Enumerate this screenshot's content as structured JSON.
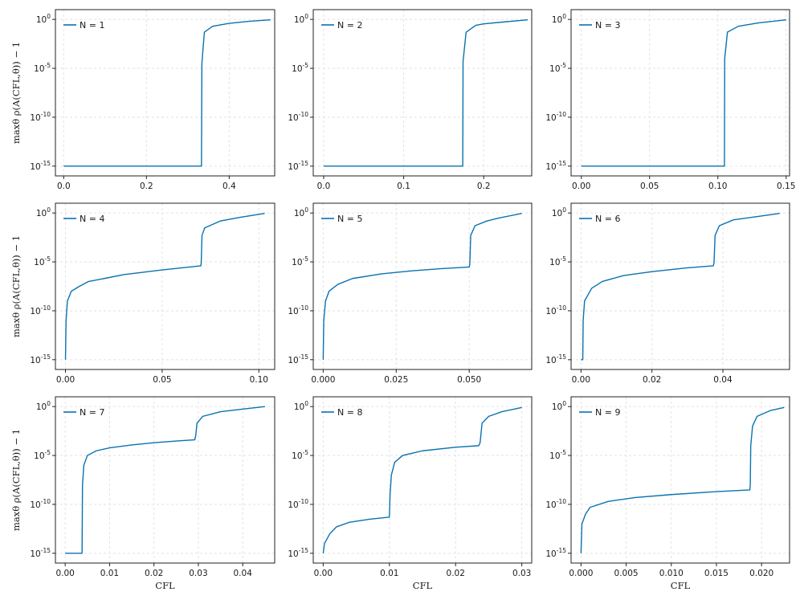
{
  "chart_data": [
    {
      "type": "line",
      "yscale": "log",
      "ylabel": "maxθ ρ(A(CFL,θ)) − 1",
      "xlabel": "",
      "xlim": [
        -0.02,
        0.51
      ],
      "ylim": [
        1e-16,
        10
      ],
      "xticks": [
        0,
        0.2,
        0.4
      ],
      "xtick_labels": [
        "0.0",
        "0.2",
        "0.4"
      ],
      "series": [
        {
          "name": "N = 1",
          "color": "#0a72b0",
          "points": [
            [
              0,
              1e-15
            ],
            [
              0.333,
              1e-15
            ],
            [
              0.334,
              3e-05
            ],
            [
              0.34,
              0.05
            ],
            [
              0.36,
              0.2
            ],
            [
              0.4,
              0.4
            ],
            [
              0.45,
              0.65
            ],
            [
              0.5,
              0.9
            ]
          ]
        }
      ]
    },
    {
      "type": "line",
      "yscale": "log",
      "ylabel": "",
      "xlabel": "",
      "xlim": [
        -0.013,
        0.26
      ],
      "ylim": [
        1e-16,
        10
      ],
      "xticks": [
        0,
        0.1,
        0.2
      ],
      "xtick_labels": [
        "0.0",
        "0.1",
        "0.2"
      ],
      "series": [
        {
          "name": "N = 2",
          "color": "#0a72b0",
          "points": [
            [
              0,
              1e-15
            ],
            [
              0.1738,
              1e-15
            ],
            [
              0.1742,
              5e-05
            ],
            [
              0.178,
              0.05
            ],
            [
              0.19,
              0.25
            ],
            [
              0.2,
              0.35
            ],
            [
              0.23,
              0.6
            ],
            [
              0.255,
              0.9
            ]
          ]
        }
      ]
    },
    {
      "type": "line",
      "yscale": "log",
      "ylabel": "",
      "xlabel": "",
      "xlim": [
        -0.0075,
        0.1525
      ],
      "ylim": [
        1e-16,
        10
      ],
      "xticks": [
        0,
        0.05,
        0.1,
        0.15
      ],
      "xtick_labels": [
        "0.00",
        "0.05",
        "0.10",
        "0.15"
      ],
      "series": [
        {
          "name": "N = 3",
          "color": "#0a72b0",
          "points": [
            [
              0,
              1e-15
            ],
            [
              0.1048,
              1e-15
            ],
            [
              0.105,
              0.0001
            ],
            [
              0.107,
              0.05
            ],
            [
              0.115,
              0.2
            ],
            [
              0.13,
              0.45
            ],
            [
              0.15,
              0.9
            ]
          ]
        }
      ]
    },
    {
      "type": "line",
      "yscale": "log",
      "ylabel": "maxθ ρ(A(CFL,θ)) − 1",
      "xlabel": "",
      "xlim": [
        -0.0052,
        0.1082
      ],
      "ylim": [
        1e-16,
        10
      ],
      "xticks": [
        0,
        0.05,
        0.1
      ],
      "xtick_labels": [
        "0.00",
        "0.05",
        "0.10"
      ],
      "series": [
        {
          "name": "N = 4",
          "color": "#0a72b0",
          "points": [
            [
              0,
              1e-15
            ],
            [
              0.0003,
              1e-11
            ],
            [
              0.001,
              1e-09
            ],
            [
              0.003,
              1e-08
            ],
            [
              0.007,
              3e-08
            ],
            [
              0.012,
              1e-07
            ],
            [
              0.02,
              2e-07
            ],
            [
              0.03,
              5e-07
            ],
            [
              0.05,
              1.5e-06
            ],
            [
              0.07,
              4e-06
            ],
            [
              0.0702,
              8e-06
            ],
            [
              0.0706,
              0.005
            ],
            [
              0.072,
              0.03
            ],
            [
              0.08,
              0.15
            ],
            [
              0.09,
              0.35
            ],
            [
              0.103,
              0.9
            ]
          ]
        }
      ]
    },
    {
      "type": "line",
      "yscale": "log",
      "ylabel": "",
      "xlabel": "",
      "xlim": [
        -0.0034,
        0.0714
      ],
      "ylim": [
        1e-16,
        10
      ],
      "xticks": [
        0,
        0.025,
        0.05
      ],
      "xtick_labels": [
        "0.000",
        "0.025",
        "0.050"
      ],
      "series": [
        {
          "name": "N = 5",
          "color": "#0a72b0",
          "points": [
            [
              0,
              1e-15
            ],
            [
              0.0002,
              1e-11
            ],
            [
              0.0008,
              1e-09
            ],
            [
              0.002,
              1e-08
            ],
            [
              0.005,
              5e-08
            ],
            [
              0.01,
              2e-07
            ],
            [
              0.02,
              6e-07
            ],
            [
              0.03,
              1.2e-06
            ],
            [
              0.04,
              2e-06
            ],
            [
              0.05,
              3e-06
            ],
            [
              0.0502,
              6e-06
            ],
            [
              0.0505,
              0.005
            ],
            [
              0.052,
              0.05
            ],
            [
              0.056,
              0.15
            ],
            [
              0.06,
              0.3
            ],
            [
              0.068,
              0.9
            ]
          ]
        }
      ]
    },
    {
      "type": "line",
      "yscale": "log",
      "ylabel": "",
      "xlabel": "",
      "xlim": [
        -0.0028,
        0.0588
      ],
      "ylim": [
        1e-16,
        10
      ],
      "xticks": [
        0,
        0.02,
        0.04
      ],
      "xtick_labels": [
        "0.00",
        "0.02",
        "0.04"
      ],
      "series": [
        {
          "name": "N = 6",
          "color": "#0a72b0",
          "points": [
            [
              0,
              1e-15
            ],
            [
              0.0005,
              1e-15
            ],
            [
              0.0006,
              1e-11
            ],
            [
              0.001,
              1e-09
            ],
            [
              0.003,
              2e-08
            ],
            [
              0.006,
              1e-07
            ],
            [
              0.012,
              4e-07
            ],
            [
              0.02,
              1e-06
            ],
            [
              0.03,
              2.5e-06
            ],
            [
              0.0373,
              4e-06
            ],
            [
              0.0375,
              8e-06
            ],
            [
              0.0378,
              0.005
            ],
            [
              0.039,
              0.05
            ],
            [
              0.043,
              0.2
            ],
            [
              0.05,
              0.45
            ],
            [
              0.056,
              0.9
            ]
          ]
        }
      ]
    },
    {
      "type": "line",
      "yscale": "log",
      "ylabel": "maxθ ρ(A(CFL,θ)) − 1",
      "xlabel": "CFL",
      "xlim": [
        -0.0022,
        0.0472
      ],
      "ylim": [
        1e-16,
        10
      ],
      "xticks": [
        0,
        0.01,
        0.02,
        0.03,
        0.04
      ],
      "xtick_labels": [
        "0.00",
        "0.01",
        "0.02",
        "0.03",
        "0.04"
      ],
      "series": [
        {
          "name": "N = 7",
          "color": "#0a72b0",
          "points": [
            [
              0,
              1e-15
            ],
            [
              0.0038,
              1e-15
            ],
            [
              0.0039,
              1e-08
            ],
            [
              0.0042,
              1e-06
            ],
            [
              0.005,
              1e-05
            ],
            [
              0.007,
              3e-05
            ],
            [
              0.01,
              6e-05
            ],
            [
              0.015,
              0.00012
            ],
            [
              0.02,
              0.0002
            ],
            [
              0.025,
              0.0003
            ],
            [
              0.0292,
              0.0004
            ],
            [
              0.0294,
              0.001
            ],
            [
              0.0297,
              0.02
            ],
            [
              0.031,
              0.1
            ],
            [
              0.035,
              0.3
            ],
            [
              0.04,
              0.55
            ],
            [
              0.045,
              1
            ]
          ]
        }
      ]
    },
    {
      "type": "line",
      "yscale": "log",
      "ylabel": "",
      "xlabel": "CFL",
      "xlim": [
        -0.0015,
        0.0315
      ],
      "ylim": [
        1e-16,
        10
      ],
      "xticks": [
        0,
        0.01,
        0.02,
        0.03
      ],
      "xtick_labels": [
        "0.00",
        "0.01",
        "0.02",
        "0.03"
      ],
      "series": [
        {
          "name": "N = 8",
          "color": "#0a72b0",
          "points": [
            [
              0,
              1e-15
            ],
            [
              0.0002,
              1e-14
            ],
            [
              0.001,
              1e-13
            ],
            [
              0.002,
              5e-13
            ],
            [
              0.004,
              1.5e-12
            ],
            [
              0.007,
              3e-12
            ],
            [
              0.01,
              5e-12
            ],
            [
              0.0101,
              1e-09
            ],
            [
              0.0103,
              1e-07
            ],
            [
              0.0108,
              2e-06
            ],
            [
              0.012,
              1e-05
            ],
            [
              0.015,
              3e-05
            ],
            [
              0.02,
              7e-05
            ],
            [
              0.0235,
              0.0001
            ],
            [
              0.0237,
              0.0002
            ],
            [
              0.024,
              0.02
            ],
            [
              0.025,
              0.1
            ],
            [
              0.027,
              0.3
            ],
            [
              0.03,
              0.8
            ]
          ]
        }
      ]
    },
    {
      "type": "line",
      "yscale": "log",
      "ylabel": "",
      "xlabel": "CFL",
      "xlim": [
        -0.0011,
        0.0231
      ],
      "ylim": [
        1e-16,
        10
      ],
      "xticks": [
        0,
        0.005,
        0.01,
        0.015,
        0.02
      ],
      "xtick_labels": [
        "0.000",
        "0.005",
        "0.010",
        "0.015",
        "0.020"
      ],
      "series": [
        {
          "name": "N = 9",
          "color": "#0a72b0",
          "points": [
            [
              0,
              1e-15
            ],
            [
              0.0001,
              1e-12
            ],
            [
              0.0005,
              1e-11
            ],
            [
              0.001,
              5e-11
            ],
            [
              0.003,
              2e-10
            ],
            [
              0.006,
              5e-10
            ],
            [
              0.01,
              1e-09
            ],
            [
              0.015,
              2e-09
            ],
            [
              0.0187,
              3e-09
            ],
            [
              0.01875,
              1e-08
            ],
            [
              0.0188,
              0.0001
            ],
            [
              0.019,
              0.01
            ],
            [
              0.0195,
              0.1
            ],
            [
              0.021,
              0.4
            ],
            [
              0.0225,
              0.8
            ]
          ]
        }
      ]
    }
  ]
}
